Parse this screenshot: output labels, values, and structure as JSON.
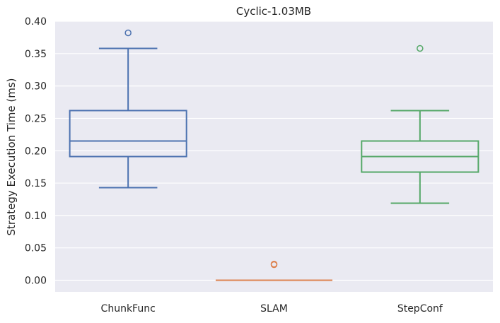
{
  "chart_data": {
    "type": "box",
    "title": "Cyclic-1.03MB",
    "xlabel": "",
    "ylabel": "Strategy Execution Time (ms)",
    "ylim": [
      -0.018,
      0.4
    ],
    "yticks": [
      "0.00",
      "0.05",
      "0.10",
      "0.15",
      "0.20",
      "0.25",
      "0.30",
      "0.35",
      "0.40"
    ],
    "grid": true,
    "background": "#eaeaf2",
    "categories": [
      "ChunkFunc",
      "SLAM",
      "StepConf"
    ],
    "boxes": [
      {
        "category": "ChunkFunc",
        "color": "#4c72b0",
        "whisker_low": 0.143,
        "q1": 0.191,
        "median": 0.215,
        "q3": 0.262,
        "whisker_high": 0.358,
        "outliers": [
          0.382
        ]
      },
      {
        "category": "SLAM",
        "color": "#dd8452",
        "whisker_low": 0.0,
        "q1": 0.0,
        "median": 0.0,
        "q3": 0.0,
        "whisker_high": 0.0,
        "outliers": [
          0.024,
          0.025
        ]
      },
      {
        "category": "StepConf",
        "color": "#55a868",
        "whisker_low": 0.119,
        "q1": 0.167,
        "median": 0.191,
        "q3": 0.215,
        "whisker_high": 0.262,
        "outliers": [
          0.358
        ]
      }
    ]
  }
}
